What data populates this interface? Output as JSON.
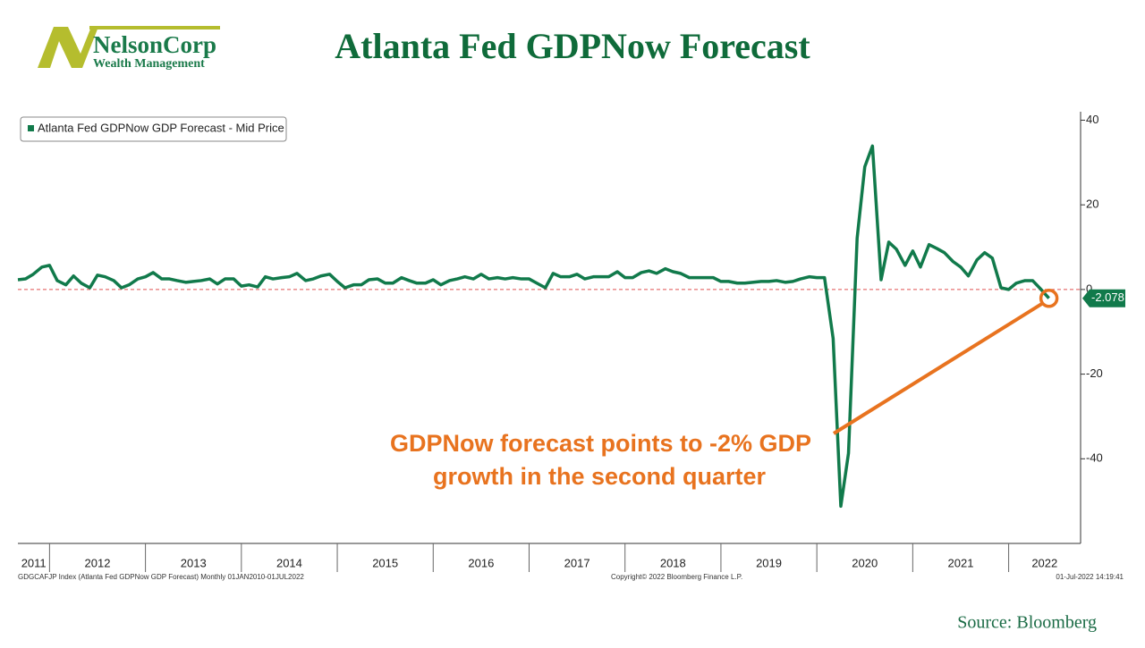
{
  "logo": {
    "name": "NelsonCorp",
    "tagline": "Wealth Management"
  },
  "source": "Source: Bloomberg",
  "chart_data": {
    "type": "line",
    "title": "Atlanta Fed GDPNow Forecast",
    "annotation": [
      "GDPNow forecast points to -2% GDP",
      "growth in the second quarter"
    ],
    "footer": [
      "GDGCAFJP Index (Atlanta Fed GDPNow GDP Forecast)  Monthly 01JAN2010-01JUL2022",
      "Copyright© 2022 Bloomberg Finance L.P.",
      "01-Jul-2022 14:19:41"
    ],
    "legend": "top-left",
    "hline": 0,
    "xlim": [
      2011.67,
      2022.75
    ],
    "xticks": [
      2011,
      2012,
      2013,
      2014,
      2015,
      2016,
      2017,
      2018,
      2019,
      2020,
      2021,
      2022
    ],
    "ylim": [
      -60,
      42
    ],
    "yticks": [
      -40,
      -20,
      0,
      20,
      40
    ],
    "x": [
      2011.67,
      2011.75,
      2011.83,
      2011.92,
      2012.0,
      2012.08,
      2012.17,
      2012.25,
      2012.33,
      2012.42,
      2012.5,
      2012.58,
      2012.67,
      2012.75,
      2012.83,
      2012.92,
      2013.0,
      2013.08,
      2013.17,
      2013.25,
      2013.33,
      2013.42,
      2013.5,
      2013.58,
      2013.67,
      2013.75,
      2013.83,
      2013.92,
      2014.0,
      2014.08,
      2014.17,
      2014.25,
      2014.33,
      2014.42,
      2014.5,
      2014.58,
      2014.67,
      2014.75,
      2014.83,
      2014.92,
      2015.0,
      2015.08,
      2015.17,
      2015.25,
      2015.33,
      2015.42,
      2015.5,
      2015.58,
      2015.67,
      2015.75,
      2015.83,
      2015.92,
      2016.0,
      2016.08,
      2016.17,
      2016.25,
      2016.33,
      2016.42,
      2016.5,
      2016.58,
      2016.67,
      2016.75,
      2016.83,
      2016.92,
      2017.0,
      2017.08,
      2017.17,
      2017.25,
      2017.33,
      2017.42,
      2017.5,
      2017.58,
      2017.67,
      2017.75,
      2017.83,
      2017.92,
      2018.0,
      2018.08,
      2018.17,
      2018.25,
      2018.33,
      2018.42,
      2018.5,
      2018.58,
      2018.67,
      2018.75,
      2018.83,
      2018.92,
      2019.0,
      2019.08,
      2019.17,
      2019.25,
      2019.33,
      2019.42,
      2019.5,
      2019.58,
      2019.67,
      2019.75,
      2019.83,
      2019.92,
      2020.0,
      2020.08,
      2020.17,
      2020.25,
      2020.33,
      2020.42,
      2020.5,
      2020.58,
      2020.67,
      2020.75,
      2020.83,
      2020.92,
      2021.0,
      2021.08,
      2021.17,
      2021.25,
      2021.33,
      2021.42,
      2021.5,
      2021.58,
      2021.67,
      2021.75,
      2021.83,
      2021.92,
      2022.0,
      2022.08,
      2022.17,
      2022.25,
      2022.33,
      2022.42
    ],
    "series": [
      {
        "name": "Atlanta Fed GDPNow GDP Forecast - Mid Price",
        "color": "#117a4b",
        "values": [
          2.3,
          2.5,
          3.6,
          5.3,
          5.7,
          2.1,
          1.1,
          3.2,
          1.5,
          0.4,
          3.4,
          3.0,
          2.1,
          0.4,
          1.1,
          2.5,
          3.0,
          4.0,
          2.5,
          2.5,
          2.1,
          1.7,
          1.9,
          2.1,
          2.5,
          1.3,
          2.5,
          2.5,
          0.8,
          1.1,
          0.6,
          3.0,
          2.5,
          2.8,
          3.0,
          3.8,
          2.1,
          2.5,
          3.2,
          3.6,
          1.9,
          0.4,
          1.1,
          1.1,
          2.3,
          2.5,
          1.5,
          1.5,
          2.8,
          2.1,
          1.5,
          1.5,
          2.3,
          1.1,
          2.1,
          2.5,
          3.0,
          2.5,
          3.6,
          2.5,
          2.8,
          2.5,
          2.8,
          2.5,
          2.5,
          1.5,
          0.4,
          3.8,
          3.0,
          3.0,
          3.6,
          2.5,
          3.0,
          3.0,
          3.0,
          4.2,
          2.8,
          2.8,
          4.0,
          4.4,
          3.8,
          4.9,
          4.2,
          3.8,
          2.8,
          2.8,
          2.8,
          2.8,
          1.9,
          1.9,
          1.5,
          1.5,
          1.7,
          1.9,
          1.9,
          2.1,
          1.7,
          1.9,
          2.5,
          3.0,
          2.8,
          2.8,
          -11.6,
          -51.2,
          -38.7,
          12.1,
          29.0,
          33.9,
          2.3,
          11.2,
          9.5,
          5.7,
          9.1,
          5.3,
          10.6,
          9.7,
          8.7,
          6.6,
          5.3,
          3.2,
          7.0,
          8.7,
          7.4,
          0.4,
          0,
          1.5,
          2.1,
          2.1,
          0.2,
          -2.078
        ]
      }
    ]
  }
}
